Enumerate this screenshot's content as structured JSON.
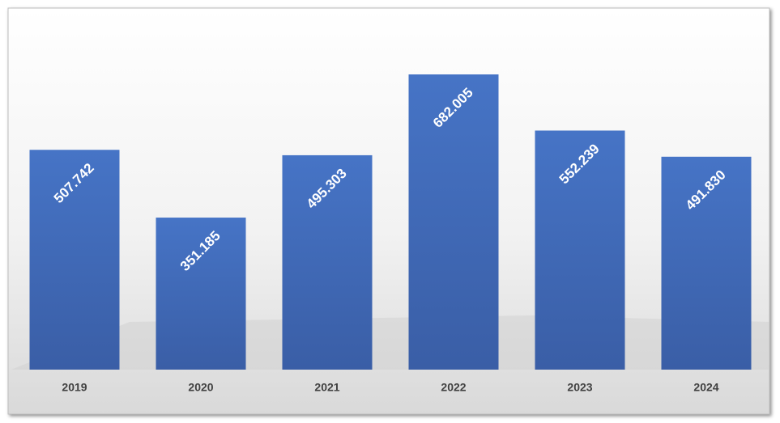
{
  "chart_data": {
    "type": "bar",
    "categories": [
      "2019",
      "2020",
      "2021",
      "2022",
      "2023",
      "2024"
    ],
    "values": [
      507.742,
      351.185,
      495.303,
      682.005,
      552.239,
      491.83
    ],
    "value_labels": [
      "507.742",
      "351.185",
      "495.303",
      "682.005",
      "552.239",
      "491.830"
    ],
    "color": "#4472c4"
  }
}
